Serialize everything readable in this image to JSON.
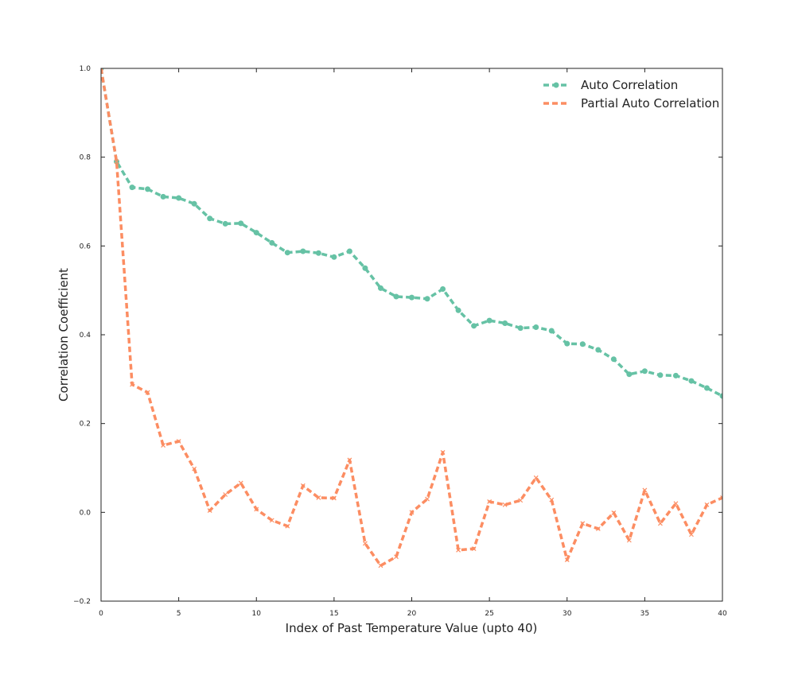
{
  "chart_data": {
    "type": "line",
    "title": "",
    "xlabel": "Index of Past Temperature Value (upto 40)",
    "ylabel": "Correlation Coefficient",
    "xlim": [
      0,
      40
    ],
    "ylim": [
      -0.2,
      1.0
    ],
    "xticks": [
      0,
      5,
      10,
      15,
      20,
      25,
      30,
      35,
      40
    ],
    "xtick_labels": [
      "0",
      "5",
      "10",
      "15",
      "20",
      "25",
      "30",
      "35",
      "40"
    ],
    "yticks": [
      -0.2,
      0.0,
      0.2,
      0.4,
      0.6,
      0.8,
      1.0
    ],
    "ytick_labels": [
      "−0.2",
      "0.0",
      "0.2",
      "0.4",
      "0.6",
      "0.8",
      "1.0"
    ],
    "grid": false,
    "legend_position": "top-right",
    "x": [
      0,
      1,
      2,
      3,
      4,
      5,
      6,
      7,
      8,
      9,
      10,
      11,
      12,
      13,
      14,
      15,
      16,
      17,
      18,
      19,
      20,
      21,
      22,
      23,
      24,
      25,
      26,
      27,
      28,
      29,
      30,
      31,
      32,
      33,
      34,
      35,
      36,
      37,
      38,
      39,
      40
    ],
    "series": [
      {
        "name": "Auto Correlation",
        "color": "#66c2a5",
        "marker": "circle",
        "values": [
          1.0,
          0.79,
          0.732,
          0.728,
          0.711,
          0.708,
          0.695,
          0.662,
          0.65,
          0.651,
          0.63,
          0.607,
          0.585,
          0.588,
          0.584,
          0.575,
          0.588,
          0.55,
          0.505,
          0.486,
          0.484,
          0.481,
          0.503,
          0.455,
          0.42,
          0.432,
          0.426,
          0.415,
          0.417,
          0.409,
          0.38,
          0.379,
          0.366,
          0.345,
          0.311,
          0.318,
          0.309,
          0.308,
          0.296,
          0.28,
          0.262
        ]
      },
      {
        "name": "Partial Auto Correlation",
        "color": "#fc8d62",
        "marker": "x",
        "values": [
          1.0,
          0.79,
          0.288,
          0.27,
          0.151,
          0.16,
          0.098,
          0.004,
          0.04,
          0.066,
          0.007,
          -0.018,
          -0.031,
          0.06,
          0.033,
          0.032,
          0.118,
          -0.07,
          -0.12,
          -0.1,
          0.0,
          0.03,
          0.135,
          -0.085,
          -0.082,
          0.024,
          0.017,
          0.027,
          0.078,
          0.028,
          -0.107,
          -0.025,
          -0.037,
          -0.001,
          -0.063,
          0.05,
          -0.025,
          0.02,
          -0.05,
          0.017,
          0.033
        ]
      }
    ]
  }
}
